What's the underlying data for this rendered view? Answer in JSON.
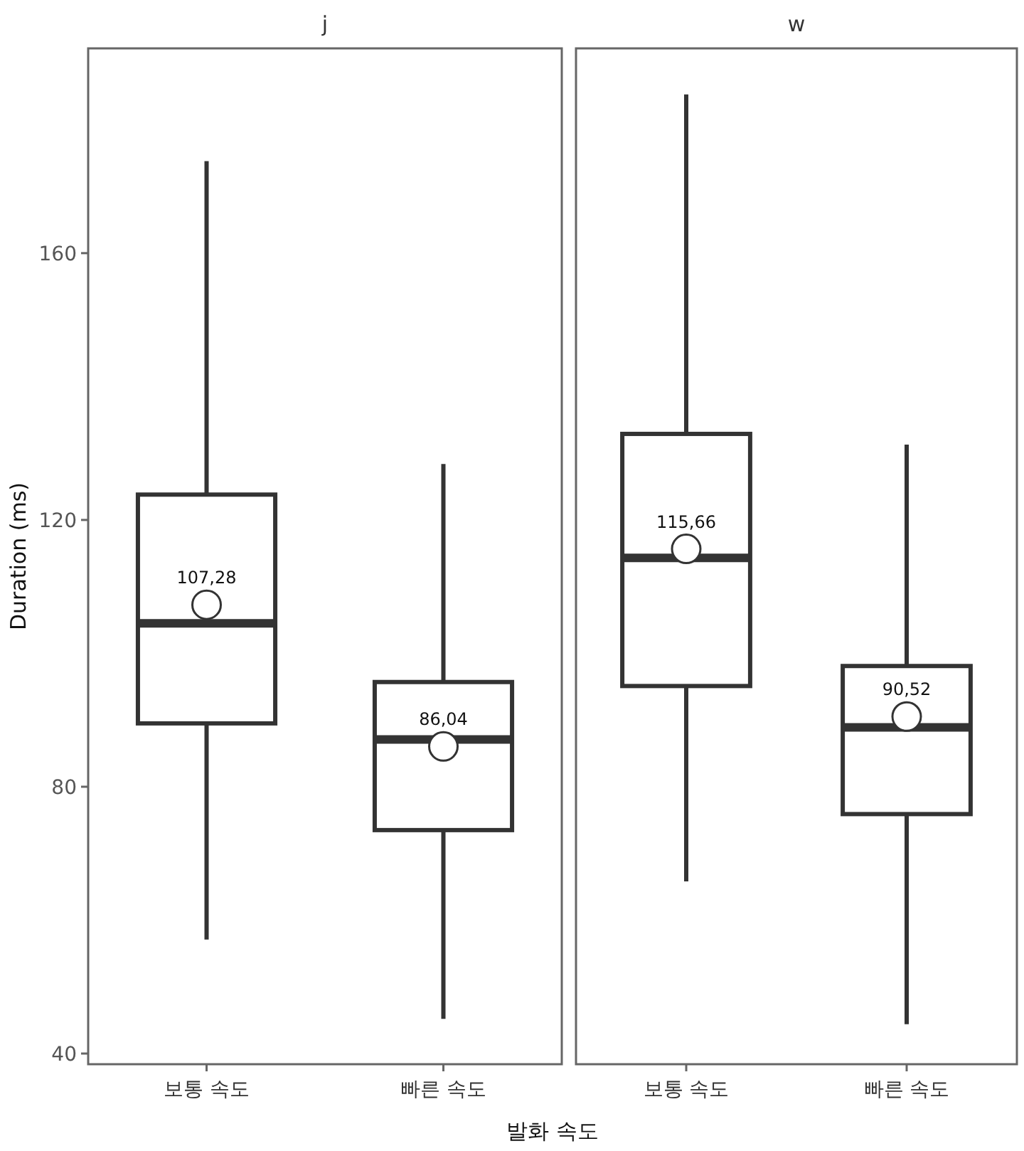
{
  "chart_data": [
    {
      "type": "box",
      "title": "j",
      "ylabel": "Duration (ms)",
      "xlabel": "발화 속도",
      "categories": [
        "보통 속도",
        "빠른 속도"
      ],
      "ylim": [
        38.4,
        190.7
      ],
      "yticks": [
        40,
        80,
        120,
        160
      ],
      "grid": false,
      "color": "#333333",
      "boxes": [
        {
          "low": 57.1,
          "q1": 89.5,
          "median": 104.5,
          "q3": 123.8,
          "high": 173.8
        },
        {
          "low": 45.2,
          "q1": 73.5,
          "median": 87.1,
          "q3": 95.7,
          "high": 128.4
        }
      ],
      "series": [
        {
          "type": "scatter",
          "marker": "circle",
          "color": "#ffffff",
          "x": [
            "보통 속도",
            "빠른 속도"
          ],
          "values": [
            107.28,
            86.04
          ],
          "value_labels": [
            "107,28",
            "86,04"
          ]
        }
      ]
    },
    {
      "type": "box",
      "title": "w",
      "categories": [
        "보통 속도",
        "빠른 속도"
      ],
      "ylim": [
        38.4,
        190.7
      ],
      "tick_labels": "x",
      "grid": false,
      "color": "#333333",
      "boxes": [
        {
          "low": 65.8,
          "q1": 95.1,
          "median": 114.3,
          "q3": 132.9,
          "high": 183.8
        },
        {
          "low": 44.4,
          "q1": 75.9,
          "median": 88.9,
          "q3": 98.1,
          "high": 131.3
        }
      ],
      "series": [
        {
          "type": "scatter",
          "marker": "circle",
          "color": "#ffffff",
          "x": [
            "보통 속도",
            "빠른 속도"
          ],
          "values": [
            115.66,
            90.52
          ],
          "value_labels": [
            "115,66",
            "90,52"
          ]
        }
      ]
    }
  ]
}
